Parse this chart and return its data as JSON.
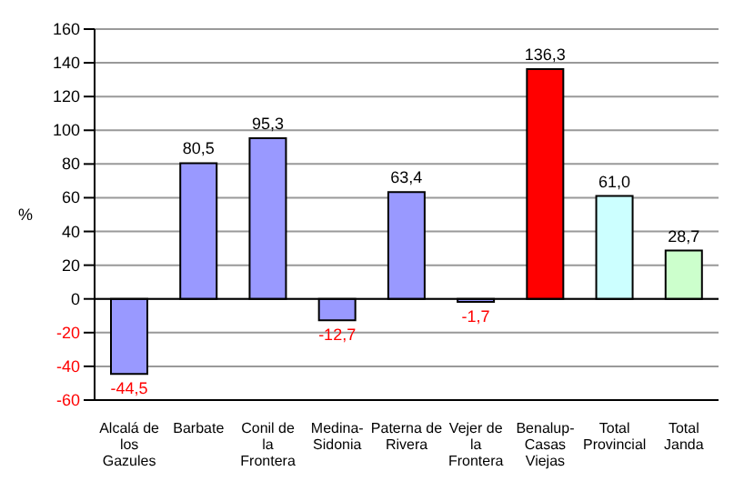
{
  "chart_data": {
    "type": "bar",
    "ylabel": "%",
    "categories": [
      "Alcalá de los Gazules",
      "Barbate",
      "Conil de la Frontera",
      "Medina-Sidonia",
      "Paterna de Rivera",
      "Vejer de la Frontera",
      "Benalup-Casas Viejas",
      "Total Provincial",
      "Total Janda"
    ],
    "values": [
      -44.5,
      80.5,
      95.3,
      -12.7,
      63.4,
      -1.7,
      136.3,
      61.0,
      28.7
    ],
    "value_labels": [
      "-44,5",
      "80,5",
      "95,3",
      "-12,7",
      "63,4",
      "-1,7",
      "136,3",
      "61,0",
      "28,7"
    ],
    "colors": [
      "#9999ff",
      "#9999ff",
      "#9999ff",
      "#9999ff",
      "#9999ff",
      "#9999ff",
      "#ff0000",
      "#ccffff",
      "#ccffcc"
    ],
    "ylim": [
      -60,
      160
    ],
    "yticks": [
      -60,
      -40,
      -20,
      0,
      20,
      40,
      60,
      80,
      100,
      120,
      140,
      160
    ],
    "grid": "y"
  }
}
